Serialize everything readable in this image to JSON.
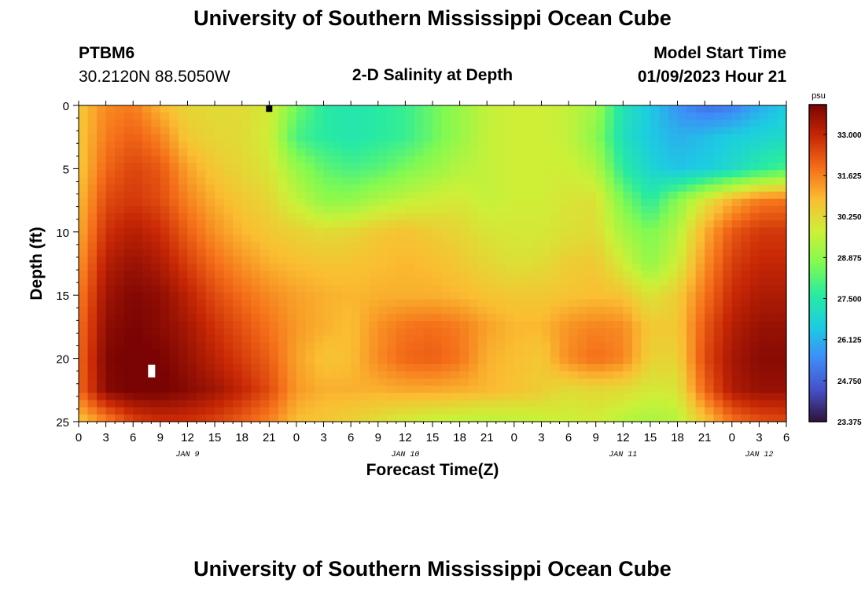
{
  "page": {
    "title": "University of Southern Mississippi Ocean Cube",
    "title_bottom": "University of Southern Mississippi Ocean Cube",
    "station_id": "PTBM6",
    "coordinates": "30.2120N  88.5050W",
    "subtitle": "2-D Salinity at Depth",
    "model_start_label": "Model Start Time",
    "model_start_value": "01/09/2023 Hour 21"
  },
  "chart_data": {
    "type": "heatmap",
    "title": "2-D Salinity at Depth",
    "xlabel": "Forecast Time(Z)",
    "ylabel": "Depth (ft)",
    "colorbar_unit": "psu",
    "x_range_hours": [
      0,
      78
    ],
    "x_tick_step_hours": 3,
    "x_tick_labels": [
      "0",
      "3",
      "6",
      "9",
      "12",
      "15",
      "18",
      "21",
      "0",
      "3",
      "6",
      "9",
      "12",
      "15",
      "18",
      "21",
      "0",
      "3",
      "6",
      "9",
      "12",
      "15",
      "18",
      "21",
      "0",
      "3",
      "6"
    ],
    "day_labels": [
      {
        "text": "JAN 9",
        "hour": 12
      },
      {
        "text": "JAN 10",
        "hour": 36
      },
      {
        "text": "JAN 11",
        "hour": 60
      },
      {
        "text": "JAN 12",
        "hour": 75
      }
    ],
    "y_range_ft": [
      0,
      25
    ],
    "y_tick_labels": [
      "0",
      "5",
      "10",
      "15",
      "20",
      "25"
    ],
    "y_ticks": [
      0,
      5,
      10,
      15,
      20,
      25
    ],
    "colorbar": {
      "min": 23.375,
      "max": 34.0,
      "ticks": [
        33.0,
        31.625,
        30.25,
        28.875,
        27.5,
        26.125,
        24.75,
        23.375
      ],
      "tick_labels": [
        "33.000",
        "31.625",
        "30.250",
        "28.875",
        "27.500",
        "26.125",
        "24.750",
        "23.375"
      ]
    },
    "markers": [
      {
        "shape": "white-rect",
        "hour": 8,
        "depth": 21
      },
      {
        "shape": "black-square",
        "hour": 21,
        "depth": 0.2
      }
    ],
    "time_hours": [
      0,
      3,
      6,
      9,
      12,
      15,
      18,
      21,
      24,
      27,
      30,
      33,
      36,
      39,
      42,
      45,
      48,
      51,
      54,
      57,
      60,
      63,
      66,
      69,
      72,
      75,
      78
    ],
    "depth_ft": [
      0,
      2.5,
      5,
      7.5,
      10,
      12.5,
      15,
      17.5,
      20,
      22.5,
      25
    ],
    "salinity_psu": [
      [
        30.6,
        31.5,
        31.7,
        30.9,
        30.3,
        30.2,
        30.2,
        29.9,
        28.5,
        27.6,
        27.4,
        27.6,
        27.8,
        28.4,
        29.0,
        29.6,
        29.8,
        29.8,
        29.6,
        29.1,
        27.3,
        26.5,
        25.6,
        25.0,
        25.2,
        26.0,
        26.5
      ],
      [
        30.6,
        31.7,
        32.1,
        31.6,
        30.6,
        30.3,
        30.2,
        29.8,
        28.0,
        27.6,
        27.4,
        27.6,
        27.8,
        28.4,
        29.0,
        29.6,
        29.8,
        29.8,
        29.6,
        28.8,
        27.2,
        26.5,
        26.1,
        26.3,
        26.6,
        26.8,
        27.0
      ],
      [
        30.6,
        32.0,
        32.5,
        32.2,
        31.2,
        30.6,
        30.3,
        30.0,
        29.0,
        28.3,
        28.0,
        28.2,
        28.6,
        29.0,
        29.4,
        29.6,
        29.8,
        29.8,
        29.8,
        29.4,
        27.6,
        26.8,
        26.4,
        26.6,
        27.0,
        27.6,
        28.0
      ],
      [
        30.8,
        32.4,
        32.7,
        32.4,
        31.6,
        31.0,
        30.6,
        30.3,
        29.6,
        28.9,
        28.9,
        29.3,
        29.6,
        29.8,
        29.9,
        29.6,
        29.8,
        29.8,
        30.0,
        30.1,
        28.6,
        27.6,
        28.8,
        30.0,
        31.0,
        31.7,
        31.8
      ],
      [
        31.0,
        32.8,
        33.2,
        32.9,
        32.1,
        31.4,
        30.9,
        30.6,
        30.4,
        30.2,
        30.3,
        30.6,
        30.7,
        30.5,
        30.3,
        30.0,
        29.9,
        29.9,
        30.1,
        30.2,
        29.2,
        28.6,
        29.4,
        31.0,
        32.2,
        32.7,
        32.7
      ],
      [
        31.3,
        33.2,
        33.6,
        33.3,
        32.6,
        31.9,
        31.4,
        31.0,
        30.8,
        30.7,
        30.7,
        30.8,
        30.9,
        30.8,
        30.6,
        30.3,
        30.1,
        30.2,
        30.5,
        30.6,
        29.8,
        28.9,
        29.8,
        31.4,
        32.6,
        33.0,
        33.0
      ],
      [
        31.6,
        33.5,
        33.9,
        33.7,
        33.1,
        32.4,
        31.9,
        31.5,
        31.2,
        31.0,
        30.9,
        31.0,
        31.0,
        31.0,
        30.9,
        30.7,
        30.6,
        30.6,
        30.7,
        30.8,
        30.7,
        30.0,
        30.5,
        31.8,
        32.9,
        33.3,
        33.3
      ],
      [
        31.8,
        33.7,
        34.0,
        33.8,
        33.4,
        32.8,
        32.3,
        31.8,
        31.3,
        31.0,
        30.8,
        31.4,
        31.8,
        31.9,
        31.7,
        31.2,
        30.9,
        30.9,
        31.4,
        31.6,
        31.5,
        30.6,
        30.6,
        32.2,
        33.2,
        33.6,
        33.6
      ],
      [
        31.9,
        33.9,
        34.1,
        34.0,
        33.6,
        33.1,
        32.6,
        32.1,
        31.2,
        30.7,
        30.8,
        31.5,
        32.0,
        32.1,
        31.8,
        31.0,
        30.8,
        30.6,
        31.5,
        31.9,
        31.6,
        30.4,
        30.4,
        32.4,
        33.4,
        33.8,
        33.8
      ],
      [
        31.9,
        33.8,
        34.1,
        34.1,
        33.8,
        33.5,
        33.0,
        32.4,
        31.3,
        31.0,
        31.0,
        31.0,
        31.1,
        31.1,
        31.0,
        30.9,
        30.7,
        30.5,
        30.2,
        30.3,
        30.2,
        29.9,
        30.0,
        32.0,
        33.3,
        33.6,
        33.6
      ],
      [
        30.6,
        31.5,
        32.5,
        32.8,
        32.8,
        32.5,
        32.1,
        31.6,
        30.8,
        30.6,
        30.4,
        30.1,
        29.8,
        29.6,
        29.5,
        29.4,
        29.5,
        29.6,
        29.7,
        29.8,
        29.4,
        29.2,
        29.4,
        30.6,
        31.8,
        32.3,
        32.4
      ]
    ]
  }
}
